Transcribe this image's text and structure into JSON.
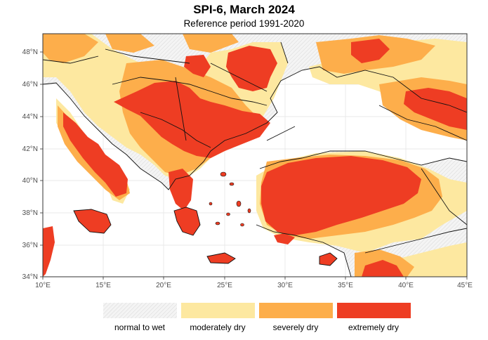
{
  "title": "SPI-6, March 2024",
  "subtitle": "Reference period 1991-2020",
  "axes": {
    "lat_ticks": [
      "34°N",
      "36°N",
      "38°N",
      "40°N",
      "42°N",
      "44°N",
      "46°N",
      "48°N"
    ],
    "lon_ticks": [
      "10°E",
      "15°E",
      "20°E",
      "25°E",
      "30°E",
      "35°E",
      "40°E",
      "45°E"
    ]
  },
  "legend": {
    "items": [
      {
        "label": "normal to wet",
        "color": "#f2f2f2"
      },
      {
        "label": "moderately dry",
        "color": "#fde8a0"
      },
      {
        "label": "severely dry",
        "color": "#fdae4b"
      },
      {
        "label": "extremely dry",
        "color": "#ee3d23"
      }
    ]
  },
  "colors": {
    "sea": "#ffffff",
    "border": "#111111",
    "grid": "#dddddd"
  }
}
